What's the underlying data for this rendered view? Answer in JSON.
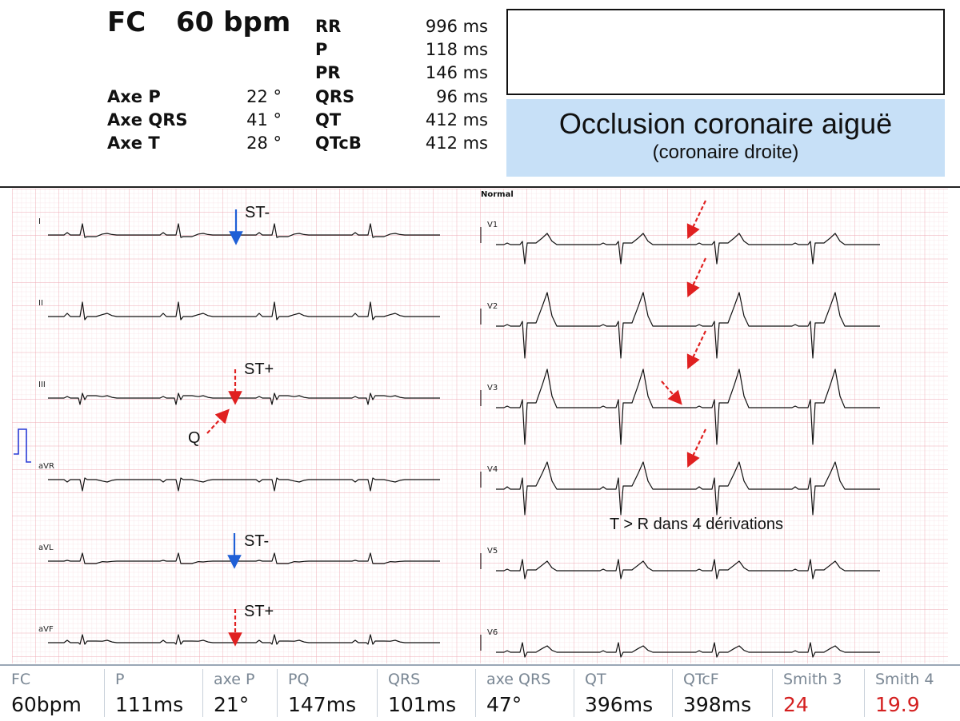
{
  "header": {
    "fc_label": "FC",
    "fc_value": "60 bpm",
    "left_rows": [
      {
        "label": "Axe P",
        "value": "22 °"
      },
      {
        "label": "Axe QRS",
        "value": "41 °"
      },
      {
        "label": "Axe T",
        "value": "28 °"
      }
    ],
    "right_rows": [
      {
        "label": "RR",
        "value": "996 ms"
      },
      {
        "label": "P",
        "value": "118 ms"
      },
      {
        "label": "PR",
        "value": "146 ms"
      },
      {
        "label": "QRS",
        "value": "96 ms"
      },
      {
        "label": "QT",
        "value": "412 ms"
      },
      {
        "label": "QTcB",
        "value": "412 ms"
      }
    ],
    "diagnosis_title": "Occlusion coronaire aiguë",
    "diagnosis_subtitle": "(coronaire droite)"
  },
  "chart_data": {
    "type": "ecg",
    "title": "Normal",
    "rate_bpm": 60,
    "leads_left": [
      "I",
      "II",
      "III",
      "aVR",
      "aVL",
      "aVF"
    ],
    "leads_right": [
      "V1",
      "V2",
      "V3",
      "V4",
      "V5",
      "V6"
    ],
    "grid_color": "#f2b8c0",
    "trace_color": "#111111",
    "annotations": [
      {
        "lead": "I",
        "text": "ST-",
        "arrow_color": "#1f5fd6"
      },
      {
        "lead": "III",
        "text": "ST+",
        "arrow_color": "#e02020"
      },
      {
        "lead": "III",
        "text": "Q",
        "arrow_color": "#e02020"
      },
      {
        "lead": "aVL",
        "text": "ST-",
        "arrow_color": "#1f5fd6"
      },
      {
        "lead": "aVF",
        "text": "ST+",
        "arrow_color": "#e02020"
      },
      {
        "lead": "V1",
        "text": "",
        "arrow_color": "#e02020"
      },
      {
        "lead": "V2",
        "text": "",
        "arrow_color": "#e02020"
      },
      {
        "lead": "V3",
        "text": "",
        "arrow_color": "#e02020"
      },
      {
        "lead": "V4",
        "text": "",
        "arrow_color": "#e02020"
      },
      {
        "lead": "V4",
        "text": "T > R dans 4 dérivations",
        "arrow_color": ""
      }
    ]
  },
  "footer": [
    {
      "label": "FC",
      "value": "60bpm",
      "color": "#111111"
    },
    {
      "label": "P",
      "value": "111ms",
      "color": "#111111"
    },
    {
      "label": "axe P",
      "value": "21°",
      "color": "#111111"
    },
    {
      "label": "PQ",
      "value": "147ms",
      "color": "#111111"
    },
    {
      "label": "QRS",
      "value": "101ms",
      "color": "#111111"
    },
    {
      "label": "axe QRS",
      "value": "47°",
      "color": "#111111"
    },
    {
      "label": "QT",
      "value": "396ms",
      "color": "#111111"
    },
    {
      "label": "QTcF",
      "value": "398ms",
      "color": "#111111"
    },
    {
      "label": "Smith 3",
      "value": "24",
      "color": "#d42020"
    },
    {
      "label": "Smith 4",
      "value": "19.9",
      "color": "#d42020"
    }
  ]
}
